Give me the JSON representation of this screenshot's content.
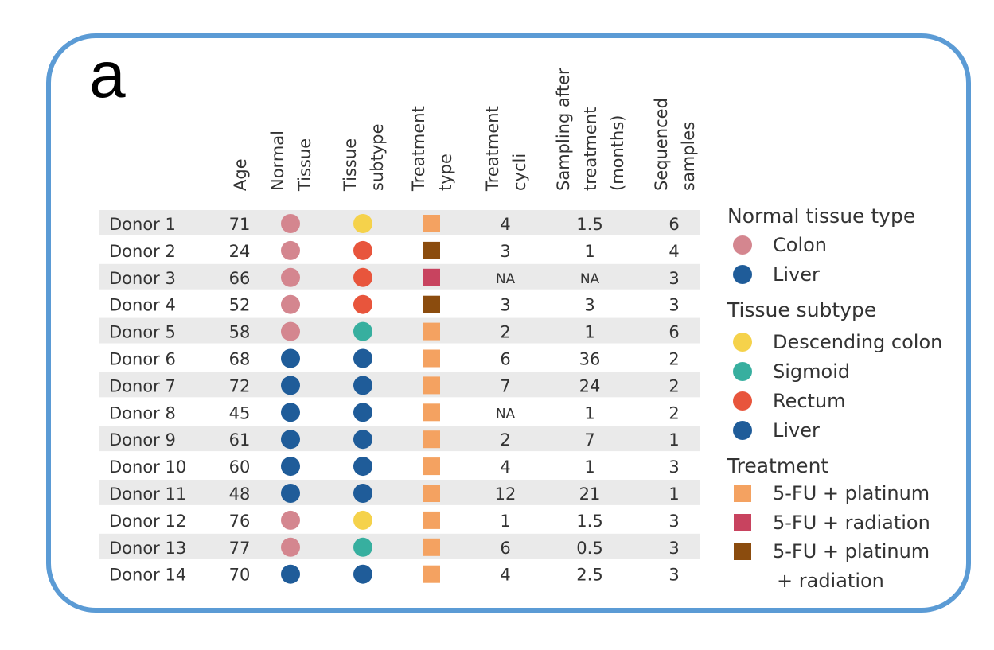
{
  "panel_label": "a",
  "colors": {
    "frame": "#5b9bd5",
    "stripe": "#eaeaea",
    "colon": "#d4868f",
    "liver": "#1f5c99",
    "descending_colon": "#f5d24b",
    "sigmoid": "#37af9f",
    "rectum": "#e8553c",
    "fu_platinum": "#f4a261",
    "fu_radiation": "#c8435f",
    "fu_platinum_radiation": "#8b4c0e"
  },
  "chart_data": {
    "type": "table",
    "columns": [
      {
        "key": "age",
        "lines": [
          "Age"
        ]
      },
      {
        "key": "normal_tissue",
        "lines": [
          "Normal",
          "Tissue"
        ]
      },
      {
        "key": "tissue_subtype",
        "lines": [
          "Tissue",
          "subtype"
        ]
      },
      {
        "key": "treatment_type",
        "lines": [
          "Treatment",
          "type"
        ]
      },
      {
        "key": "treatment_cycli",
        "lines": [
          "Treatment",
          "cycli"
        ]
      },
      {
        "key": "sampling_after_treatment",
        "lines": [
          "Sampling after",
          "treatment",
          "(months)"
        ]
      },
      {
        "key": "sequenced_samples",
        "lines": [
          "Sequenced",
          "samples"
        ]
      }
    ],
    "rows": [
      {
        "donor": "Donor 1",
        "age": "71",
        "normal_tissue": "colon",
        "tissue_subtype": "descending_colon",
        "treatment_type": "fu_platinum",
        "treatment_cycli": "4",
        "sampling_after_treatment": "1.5",
        "sequenced_samples": "6"
      },
      {
        "donor": "Donor 2",
        "age": "24",
        "normal_tissue": "colon",
        "tissue_subtype": "rectum",
        "treatment_type": "fu_platinum_radiation",
        "treatment_cycli": "3",
        "sampling_after_treatment": "1",
        "sequenced_samples": "4"
      },
      {
        "donor": "Donor 3",
        "age": "66",
        "normal_tissue": "colon",
        "tissue_subtype": "rectum",
        "treatment_type": "fu_radiation",
        "treatment_cycli": "NA",
        "sampling_after_treatment": "NA",
        "sequenced_samples": "3"
      },
      {
        "donor": "Donor 4",
        "age": "52",
        "normal_tissue": "colon",
        "tissue_subtype": "rectum",
        "treatment_type": "fu_platinum_radiation",
        "treatment_cycli": "3",
        "sampling_after_treatment": "3",
        "sequenced_samples": "3"
      },
      {
        "donor": "Donor 5",
        "age": "58",
        "normal_tissue": "colon",
        "tissue_subtype": "sigmoid",
        "treatment_type": "fu_platinum",
        "treatment_cycli": "2",
        "sampling_after_treatment": "1",
        "sequenced_samples": "6"
      },
      {
        "donor": "Donor 6",
        "age": "68",
        "normal_tissue": "liver",
        "tissue_subtype": "liver",
        "treatment_type": "fu_platinum",
        "treatment_cycli": "6",
        "sampling_after_treatment": "36",
        "sequenced_samples": "2"
      },
      {
        "donor": "Donor 7",
        "age": "72",
        "normal_tissue": "liver",
        "tissue_subtype": "liver",
        "treatment_type": "fu_platinum",
        "treatment_cycli": "7",
        "sampling_after_treatment": "24",
        "sequenced_samples": "2"
      },
      {
        "donor": "Donor 8",
        "age": "45",
        "normal_tissue": "liver",
        "tissue_subtype": "liver",
        "treatment_type": "fu_platinum",
        "treatment_cycli": "NA",
        "sampling_after_treatment": "1",
        "sequenced_samples": "2"
      },
      {
        "donor": "Donor 9",
        "age": "61",
        "normal_tissue": "liver",
        "tissue_subtype": "liver",
        "treatment_type": "fu_platinum",
        "treatment_cycli": "2",
        "sampling_after_treatment": "7",
        "sequenced_samples": "1"
      },
      {
        "donor": "Donor 10",
        "age": "60",
        "normal_tissue": "liver",
        "tissue_subtype": "liver",
        "treatment_type": "fu_platinum",
        "treatment_cycli": "4",
        "sampling_after_treatment": "1",
        "sequenced_samples": "3"
      },
      {
        "donor": "Donor 11",
        "age": "48",
        "normal_tissue": "liver",
        "tissue_subtype": "liver",
        "treatment_type": "fu_platinum",
        "treatment_cycli": "12",
        "sampling_after_treatment": "21",
        "sequenced_samples": "1"
      },
      {
        "donor": "Donor 12",
        "age": "76",
        "normal_tissue": "colon",
        "tissue_subtype": "descending_colon",
        "treatment_type": "fu_platinum",
        "treatment_cycli": "1",
        "sampling_after_treatment": "1.5",
        "sequenced_samples": "3"
      },
      {
        "donor": "Donor 13",
        "age": "77",
        "normal_tissue": "colon",
        "tissue_subtype": "sigmoid",
        "treatment_type": "fu_platinum",
        "treatment_cycli": "6",
        "sampling_after_treatment": "0.5",
        "sequenced_samples": "3"
      },
      {
        "donor": "Donor 14",
        "age": "70",
        "normal_tissue": "liver",
        "tissue_subtype": "liver",
        "treatment_type": "fu_platinum",
        "treatment_cycli": "4",
        "sampling_after_treatment": "2.5",
        "sequenced_samples": "3"
      }
    ],
    "legend": [
      {
        "title": "Normal tissue type",
        "items": [
          {
            "shape": "circle",
            "color_key": "colon",
            "lines": [
              "Colon"
            ]
          },
          {
            "shape": "circle",
            "color_key": "liver",
            "lines": [
              "Liver"
            ]
          }
        ]
      },
      {
        "title": "Tissue subtype",
        "items": [
          {
            "shape": "circle",
            "color_key": "descending_colon",
            "lines": [
              "Descending colon"
            ]
          },
          {
            "shape": "circle",
            "color_key": "sigmoid",
            "lines": [
              "Sigmoid"
            ]
          },
          {
            "shape": "circle",
            "color_key": "rectum",
            "lines": [
              "Rectum"
            ]
          },
          {
            "shape": "circle",
            "color_key": "liver",
            "lines": [
              "Liver"
            ]
          }
        ]
      },
      {
        "title": "Treatment",
        "items": [
          {
            "shape": "square",
            "color_key": "fu_platinum",
            "lines": [
              "5-FU + platinum"
            ]
          },
          {
            "shape": "square",
            "color_key": "fu_radiation",
            "lines": [
              "5-FU + radiation"
            ]
          },
          {
            "shape": "square",
            "color_key": "fu_platinum_radiation",
            "lines": [
              "5-FU + platinum",
              "+ radiation"
            ]
          }
        ]
      }
    ]
  }
}
